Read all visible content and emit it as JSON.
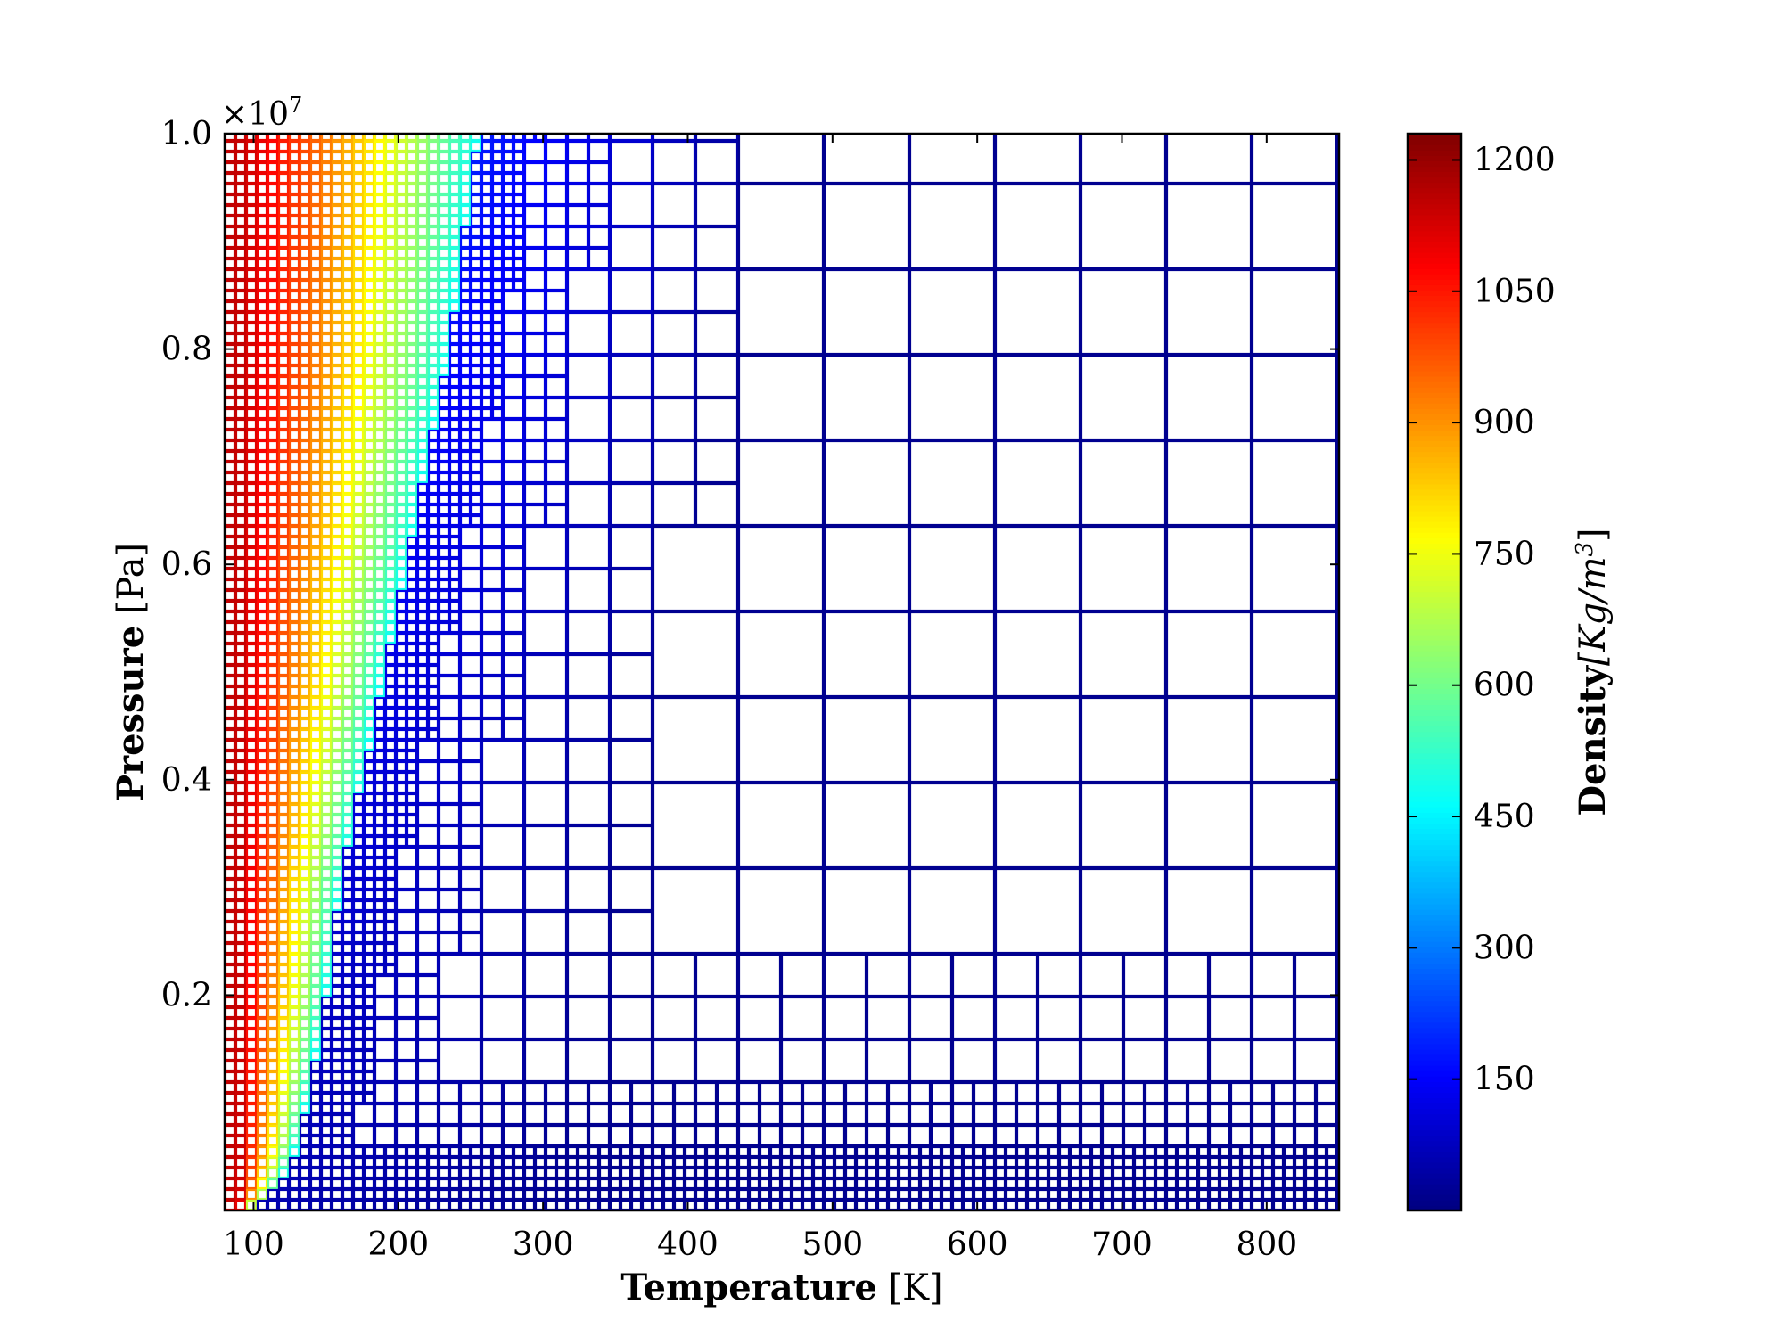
{
  "chart_data": {
    "type": "heatmap",
    "title": "",
    "xlabel": {
      "bold": "Temperature",
      "unit": "[K]"
    },
    "ylabel": {
      "bold": "Pressure",
      "unit": "[Pa]"
    },
    "y_offset_label": "×10",
    "y_offset_exponent": "7",
    "xlim": [
      80,
      850
    ],
    "ylim": [
      0,
      1.0
    ],
    "x_ticks": [
      100,
      200,
      300,
      400,
      500,
      600,
      700,
      800
    ],
    "x_tick_labels": [
      "100",
      "200",
      "300",
      "400",
      "500",
      "600",
      "700",
      "800"
    ],
    "y_ticks": [
      0.2,
      0.4,
      0.6,
      0.8,
      1.0
    ],
    "y_tick_labels": [
      "0.2",
      "0.4",
      "0.6",
      "0.8",
      "1.0"
    ],
    "colorbar": {
      "label": {
        "bold": "Density",
        "unit": "[Kg/m",
        "unit_exp": "3",
        "unit_close": "]"
      },
      "range": [
        0,
        1230
      ],
      "colormap": "jet",
      "ticks": [
        150,
        300,
        450,
        600,
        750,
        900,
        1050,
        1200
      ],
      "tick_labels": [
        "150",
        "300",
        "450",
        "600",
        "750",
        "900",
        "1050",
        "1200"
      ]
    },
    "density_model": {
      "liquid_density_at_low_T": 1150,
      "liquid_density_near_transition": 480,
      "vapor_density": 20,
      "transition_curve": [
        [
          90,
          0.0
        ],
        [
          100,
          0.003
        ],
        [
          110,
          0.012
        ],
        [
          120,
          0.03
        ],
        [
          130,
          0.06
        ],
        [
          140,
          0.12
        ],
        [
          150,
          0.2
        ],
        [
          160,
          0.3
        ],
        [
          175,
          0.4
        ],
        [
          190,
          0.5
        ],
        [
          205,
          0.6
        ],
        [
          220,
          0.7
        ],
        [
          235,
          0.8
        ],
        [
          245,
          0.9
        ],
        [
          255,
          1.0
        ]
      ]
    },
    "mesh_refinement": "adaptive quadtree cells; finest near the phase boundary and along P≈0",
    "grid": false,
    "legend": "none"
  }
}
